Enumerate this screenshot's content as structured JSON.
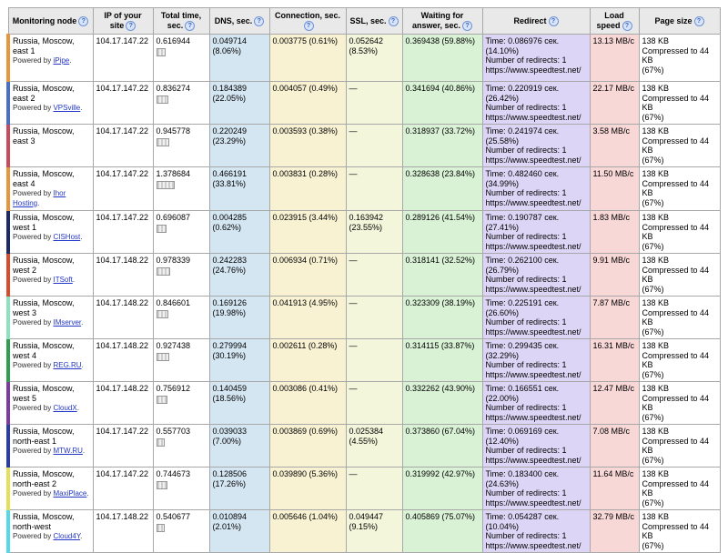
{
  "palette": {
    "hdr": "#e9e9e9",
    "dns": "#d5e6f3",
    "conn": "#f8f2d3",
    "ssl": "#f3f6da",
    "wait": "#d9f2d5",
    "redirect": "#dcd5f5",
    "speed": "#f8d7d7",
    "size": "#ffffff"
  },
  "table": {
    "columns": [
      {
        "key": "node",
        "label": "Monitoring node"
      },
      {
        "key": "ip",
        "label": "IP of your site"
      },
      {
        "key": "total",
        "label": "Total time, sec."
      },
      {
        "key": "dns",
        "label": "DNS, sec."
      },
      {
        "key": "conn",
        "label": "Connection, sec."
      },
      {
        "key": "ssl",
        "label": "SSL, sec."
      },
      {
        "key": "wait",
        "label": "Waiting for answer, sec."
      },
      {
        "key": "redirect",
        "label": "Redirect"
      },
      {
        "key": "speed",
        "label": "Load speed"
      },
      {
        "key": "size",
        "label": "Page size"
      }
    ],
    "rows": [
      {
        "name": "Russia, Moscow, east 1",
        "powered_by": "iPipe",
        "ip": "104.17.147.22",
        "total": "0.616944",
        "dns": "0.049714\n(8.06%)",
        "conn": "0.003775 (0.61%)",
        "ssl": "0.052642\n(8.53%)",
        "wait": "0.369438 (59.88%)",
        "redirect": "Time: 0.086976 сек.\n(14.10%)\nNumber of redirects: 1\nhttps://www.speedtest.net/",
        "speed": "13.13 MB/c",
        "size": "138 KB\nCompressed to 44 KB\n(67%)",
        "accent": "#e8963c"
      },
      {
        "name": "Russia, Moscow, east 2",
        "powered_by": "VPSville",
        "ip": "104.17.147.22",
        "total": "0.836274",
        "dns": "0.184389\n(22.05%)",
        "conn": "0.004057 (0.49%)",
        "ssl": "—",
        "wait": "0.341694 (40.86%)",
        "redirect": "Time: 0.220919 сек.\n(26.42%)\nNumber of redirects: 1\nhttps://www.speedtest.net/",
        "speed": "22.17 MB/c",
        "size": "138 KB\nCompressed to 44 KB\n(67%)",
        "accent": "#4a6fc8"
      },
      {
        "name": "Russia, Moscow, east 3",
        "powered_by": null,
        "ip": "104.17.147.22",
        "total": "0.945778",
        "dns": "0.220249\n(23.29%)",
        "conn": "0.003593 (0.38%)",
        "ssl": "—",
        "wait": "0.318937 (33.72%)",
        "redirect": "Time: 0.241974 сек.\n(25.58%)\nNumber of redirects: 1\nhttps://www.speedtest.net/",
        "speed": "3.58 MB/c",
        "size": "138 KB\nCompressed to 44 KB\n(67%)",
        "accent": "#c84a5f"
      },
      {
        "name": "Russia, Moscow, east 4",
        "powered_by": "Ihor Hosting",
        "ip": "104.17.147.22",
        "total": "1.378684",
        "dns": "0.466191\n(33.81%)",
        "conn": "0.003831 (0.28%)",
        "ssl": "—",
        "wait": "0.328638 (23.84%)",
        "redirect": "Time: 0.482460 сек.\n(34.99%)\nNumber of redirects: 1\nhttps://www.speedtest.net/",
        "speed": "11.50 MB/c",
        "size": "138 KB\nCompressed to 44 KB\n(67%)",
        "accent": "#e8963c"
      },
      {
        "name": "Russia, Moscow, west 1",
        "powered_by": "CISHost",
        "ip": "104.17.147.22",
        "total": "0.696087",
        "dns": "0.004285\n(0.62%)",
        "conn": "0.023915 (3.44%)",
        "ssl": "0.163942\n(23.55%)",
        "wait": "0.289126 (41.54%)",
        "redirect": "Time: 0.190787 сек.\n(27.41%)\nNumber of redirects: 1\nhttps://www.speedtest.net/",
        "speed": "1.83 MB/c",
        "size": "138 KB\nCompressed to 44 KB\n(67%)",
        "accent": "#1e2a64"
      },
      {
        "name": "Russia, Moscow, west 2",
        "powered_by": "ITSoft",
        "ip": "104.17.148.22",
        "total": "0.978339",
        "dns": "0.242283\n(24.76%)",
        "conn": "0.006934 (0.71%)",
        "ssl": "—",
        "wait": "0.318141 (32.52%)",
        "redirect": "Time: 0.262100 сек.\n(26.79%)\nNumber of redirects: 1\nhttps://www.speedtest.net/",
        "speed": "9.91 MB/c",
        "size": "138 KB\nCompressed to 44 KB\n(67%)",
        "accent": "#d84c2e"
      },
      {
        "name": "Russia, Moscow, west 3",
        "powered_by": "IMserver",
        "ip": "104.17.148.22",
        "total": "0.846601",
        "dns": "0.169126\n(19.98%)",
        "conn": "0.041913 (4.95%)",
        "ssl": "—",
        "wait": "0.323309 (38.19%)",
        "redirect": "Time: 0.225191 сек.\n(26.60%)\nNumber of redirects: 1\nhttps://www.speedtest.net/",
        "speed": "7.87 MB/c",
        "size": "138 KB\nCompressed to 44 KB\n(67%)",
        "accent": "#8fe0c0"
      },
      {
        "name": "Russia, Moscow, west 4",
        "powered_by": "REG.RU",
        "ip": "104.17.148.22",
        "total": "0.927438",
        "dns": "0.279994\n(30.19%)",
        "conn": "0.002611 (0.28%)",
        "ssl": "—",
        "wait": "0.314115 (33.87%)",
        "redirect": "Time: 0.299435 сек.\n(32.29%)\nNumber of redirects: 1\nhttps://www.speedtest.net/",
        "speed": "16.31 MB/c",
        "size": "138 KB\nCompressed to 44 KB\n(67%)",
        "accent": "#2f9e4f"
      },
      {
        "name": "Russia, Moscow, west 5",
        "powered_by": "CloudX",
        "ip": "104.17.148.22",
        "total": "0.756912",
        "dns": "0.140459\n(18.56%)",
        "conn": "0.003086 (0.41%)",
        "ssl": "—",
        "wait": "0.332262 (43.90%)",
        "redirect": "Time: 0.166551 сек.\n(22.00%)\nNumber of redirects: 1\nhttps://www.speedtest.net/",
        "speed": "12.47 MB/c",
        "size": "138 KB\nCompressed to 44 KB\n(67%)",
        "accent": "#7a3ca0"
      },
      {
        "name": "Russia, Moscow, north-east 1",
        "powered_by": "MTW.RU",
        "ip": "104.17.147.22",
        "total": "0.557703",
        "dns": "0.039033\n(7.00%)",
        "conn": "0.003869 (0.69%)",
        "ssl": "0.025384\n(4.55%)",
        "wait": "0.373860 (67.04%)",
        "redirect": "Time: 0.069169 сек.\n(12.40%)\nNumber of redirects: 1\nhttps://www.speedtest.net/",
        "speed": "7.08 MB/c",
        "size": "138 KB\nCompressed to 44 KB\n(67%)",
        "accent": "#2a3ca8"
      },
      {
        "name": "Russia, Moscow, north-east 2",
        "powered_by": "MaxiPlace",
        "ip": "104.17.147.22",
        "total": "0.744673",
        "dns": "0.128506\n(17.26%)",
        "conn": "0.039890 (5.36%)",
        "ssl": "—",
        "wait": "0.319992 (42.97%)",
        "redirect": "Time: 0.183400 сек.\n(24.63%)\nNumber of redirects: 1\nhttps://www.speedtest.net/",
        "speed": "11.64 MB/c",
        "size": "138 KB\nCompressed to 44 KB\n(67%)",
        "accent": "#e6df5a"
      },
      {
        "name": "Russia, Moscow, north-west",
        "powered_by": "Cloud4Y",
        "ip": "104.17.148.22",
        "total": "0.540677",
        "dns": "0.010894\n(2.01%)",
        "conn": "0.005646 (1.04%)",
        "ssl": "0.049447\n(9.15%)",
        "wait": "0.405869 (75.07%)",
        "redirect": "Time: 0.054287 сек.\n(10.04%)\nNumber of redirects: 1\nhttps://www.speedtest.net/",
        "speed": "32.79 MB/c",
        "size": "138 KB\nCompressed to 44 KB\n(67%)",
        "accent": "#55d8e8"
      }
    ],
    "powered_by_prefix": "Powered by ",
    "info_icon_glyph": "?"
  }
}
